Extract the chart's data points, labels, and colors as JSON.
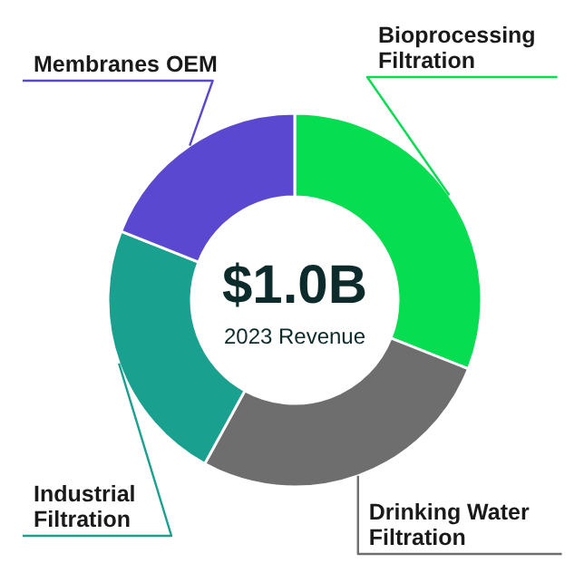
{
  "chart_data": {
    "type": "donut",
    "categories": [
      "Bioprocessing Filtration",
      "Drinking Water Filtration",
      "Industrial Filtration",
      "Membranes OEM"
    ],
    "values": [
      31,
      27,
      23,
      19
    ],
    "colors": [
      "#06dd50",
      "#6e6e6e",
      "#1aa08e",
      "#5a48d0"
    ],
    "annotations": [
      "$1.0B",
      "2023 Revenue"
    ]
  }
}
